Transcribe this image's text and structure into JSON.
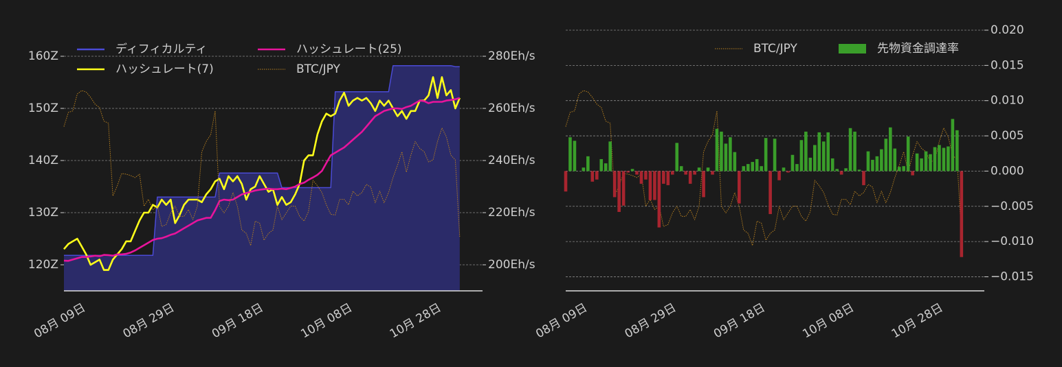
{
  "chart_data": [
    {
      "type": "line",
      "categories": [
        "08月 09日",
        null,
        null,
        null,
        null,
        null,
        null,
        null,
        null,
        null,
        null,
        null,
        null,
        null,
        null,
        null,
        null,
        null,
        null,
        null,
        "08月 29日",
        null,
        null,
        null,
        null,
        null,
        null,
        null,
        null,
        null,
        null,
        null,
        null,
        null,
        null,
        null,
        null,
        null,
        null,
        null,
        "09月 18日",
        null,
        null,
        null,
        null,
        null,
        null,
        null,
        null,
        null,
        null,
        null,
        null,
        null,
        null,
        null,
        null,
        null,
        null,
        null,
        "10月 08日",
        null,
        null,
        null,
        null,
        null,
        null,
        null,
        null,
        null,
        null,
        null,
        null,
        null,
        null,
        null,
        null,
        null,
        null,
        null,
        "10月 28日",
        null,
        null,
        null,
        null,
        null,
        null,
        null,
        null,
        null
      ],
      "ylim": [
        115,
        165
      ],
      "yticks": [
        {
          "value": 120,
          "label": "120Z"
        },
        {
          "value": 130,
          "label": "130Z"
        },
        {
          "value": 140,
          "label": "140Z"
        },
        {
          "value": 150,
          "label": "150Z"
        },
        {
          "value": 160,
          "label": "160Z"
        }
      ],
      "y2lim": [
        190,
        290
      ],
      "y2ticks": [
        {
          "value": 200,
          "label": "200Eh/s"
        },
        {
          "value": 220,
          "label": "220Eh/s"
        },
        {
          "value": 240,
          "label": "240Eh/s"
        },
        {
          "value": 260,
          "label": "260Eh/s"
        },
        {
          "value": 280,
          "label": "280Eh/s"
        }
      ],
      "grid": true,
      "legend": "upper left",
      "legend_columns": 2,
      "series": [
        {
          "name": "ディフィカルティ",
          "color": "#4b4bd6",
          "fill": "#2b2b69",
          "area": true,
          "values": [
            121.8,
            121.8,
            121.8,
            121.8,
            121.8,
            121.8,
            121.8,
            121.8,
            121.8,
            121.8,
            121.8,
            121.8,
            121.8,
            121.8,
            121.8,
            121.8,
            121.8,
            121.8,
            121.8,
            121.8,
            121.8,
            133,
            133,
            133,
            133,
            133,
            133,
            133,
            133,
            133,
            133,
            133,
            133,
            133,
            133,
            137.6,
            137.6,
            137.6,
            137.6,
            137.6,
            137.6,
            137.6,
            137.6,
            137.6,
            137.6,
            137.6,
            137.6,
            137.6,
            137.6,
            134.8,
            134.8,
            134.8,
            134.8,
            134.8,
            134.8,
            134.8,
            134.8,
            134.8,
            134.8,
            134.8,
            134.8,
            153.2,
            153.2,
            153.2,
            153.2,
            153.2,
            153.2,
            153.2,
            153.2,
            153.2,
            153.2,
            153.2,
            153.2,
            153.2,
            158.2,
            158.2,
            158.2,
            158.2,
            158.2,
            158.2,
            158.2,
            158.2,
            158.2,
            158.2,
            158.2,
            158.2,
            158.2,
            158.2,
            158,
            158
          ]
        },
        {
          "name": "ハッシュレート(7)",
          "color": "#ffff1a",
          "axis": "y2",
          "values": [
            206,
            208,
            209,
            210,
            207,
            204,
            200,
            201,
            202,
            198,
            198,
            202,
            204,
            206,
            209,
            209,
            213,
            217,
            220,
            220,
            223,
            222,
            225,
            223,
            225,
            216,
            219,
            223,
            225,
            225,
            225,
            224,
            227,
            229,
            232,
            233,
            229,
            234,
            232,
            234,
            231,
            225,
            229,
            230,
            234,
            231,
            228,
            229,
            223,
            226,
            223,
            224,
            227,
            231,
            240,
            242,
            242,
            250,
            255,
            258,
            257,
            258,
            263,
            266,
            261,
            263,
            264,
            263,
            264,
            262,
            259,
            263,
            261,
            263,
            260,
            257,
            259,
            256,
            259,
            259,
            263,
            263,
            265,
            272,
            264,
            272,
            265,
            267,
            260,
            264
          ]
        },
        {
          "name": "ハッシュレート(25)",
          "color": "#e8149c",
          "axis": "y2",
          "values": [
            201.6,
            201.5,
            202,
            202.5,
            203,
            203,
            203.2,
            203.5,
            203.3,
            203.8,
            203.7,
            203.5,
            204,
            204,
            204.2,
            204.7,
            205.5,
            206.5,
            207.5,
            208.5,
            209.5,
            210,
            210.2,
            210.8,
            211.5,
            212,
            213,
            214,
            215,
            216,
            217,
            217.5,
            218,
            218,
            221,
            224.5,
            225,
            224.8,
            225,
            226,
            227,
            227.5,
            228,
            228.5,
            228.8,
            229,
            229.2,
            229,
            229,
            229.2,
            229,
            229.5,
            230,
            231,
            231.5,
            232.6,
            233.5,
            234.5,
            236,
            239,
            242,
            243,
            244,
            245,
            246.5,
            248,
            249.5,
            251,
            253,
            255,
            257,
            258,
            259,
            259.5,
            260,
            260,
            259.8,
            260.5,
            261,
            262,
            263,
            262.8,
            262,
            262.5,
            262.5,
            262.5,
            263,
            263.2,
            263.5,
            264
          ]
        },
        {
          "name": "BTC/JPY",
          "color": "#b8801f",
          "axis": "own",
          "dash": "dotted",
          "values": [
            10.47,
            10.68,
            10.7,
            10.95,
            11.0,
            10.98,
            10.9,
            10.8,
            10.75,
            10.55,
            10.52,
            9.45,
            9.6,
            9.78,
            9.77,
            9.75,
            9.72,
            9.77,
            9.3,
            9.4,
            9.25,
            9.3,
            9.0,
            9.03,
            9.2,
            9.3,
            9.15,
            9.15,
            9.25,
            9.1,
            9.3,
            10.1,
            10.25,
            10.35,
            10.7,
            9.3,
            9.2,
            9.3,
            9.5,
            9.3,
            8.95,
            8.9,
            8.72,
            9.08,
            9.05,
            8.8,
            8.9,
            8.95,
            9.3,
            9.1,
            9.2,
            9.3,
            9.3,
            9.15,
            9.08,
            9.22,
            9.68,
            9.6,
            9.5,
            9.32,
            9.18,
            9.17,
            9.4,
            9.4,
            9.32,
            9.52,
            9.45,
            9.5,
            9.62,
            9.58,
            9.35,
            9.52,
            9.35,
            9.5,
            9.72,
            9.9,
            10.1,
            9.8,
            10.05,
            10.25,
            10.15,
            10.1,
            9.95,
            9.98,
            10.25,
            10.45,
            10.32,
            10.05,
            9.98,
            8.85
          ]
        }
      ]
    },
    {
      "type": "bar",
      "categories": [
        "08月 09日",
        null,
        null,
        null,
        null,
        null,
        null,
        null,
        null,
        null,
        null,
        null,
        null,
        null,
        null,
        null,
        null,
        null,
        null,
        null,
        "08月 29日",
        null,
        null,
        null,
        null,
        null,
        null,
        null,
        null,
        null,
        null,
        null,
        null,
        null,
        null,
        null,
        null,
        null,
        null,
        null,
        "09月 18日",
        null,
        null,
        null,
        null,
        null,
        null,
        null,
        null,
        null,
        null,
        null,
        null,
        null,
        null,
        null,
        null,
        null,
        null,
        null,
        "10月 08日",
        null,
        null,
        null,
        null,
        null,
        null,
        null,
        null,
        null,
        null,
        null,
        null,
        null,
        null,
        null,
        null,
        null,
        null,
        null,
        "10月 28日",
        null,
        null,
        null,
        null,
        null,
        null,
        null,
        null,
        null
      ],
      "ylim": [
        -0.017,
        0.02
      ],
      "yticks": [
        {
          "value": 0.02,
          "label": "0.020"
        },
        {
          "value": 0.015,
          "label": "0.015"
        },
        {
          "value": 0.01,
          "label": "0.010"
        },
        {
          "value": 0.005,
          "label": "0.005"
        },
        {
          "value": 0,
          "label": "0.000"
        },
        {
          "value": -0.005,
          "label": "−0.005"
        },
        {
          "value": -0.01,
          "label": "−0.010"
        },
        {
          "value": -0.015,
          "label": "−0.015"
        }
      ],
      "y_axis_side": "right",
      "grid": true,
      "legend": "upper right",
      "legend_columns": 2,
      "series": [
        {
          "name": "BTC/JPY",
          "type": "line",
          "color": "#b8801f",
          "axis": "own",
          "dash": "dotted",
          "values": [
            10.47,
            10.68,
            10.7,
            10.95,
            11.0,
            10.98,
            10.9,
            10.8,
            10.75,
            10.55,
            10.52,
            9.45,
            9.6,
            9.78,
            9.77,
            9.75,
            9.72,
            9.77,
            9.3,
            9.4,
            9.25,
            9.3,
            9.0,
            9.03,
            9.2,
            9.3,
            9.15,
            9.15,
            9.25,
            9.1,
            9.3,
            10.1,
            10.25,
            10.35,
            10.7,
            9.3,
            9.2,
            9.3,
            9.5,
            9.3,
            8.95,
            8.9,
            8.72,
            9.08,
            9.05,
            8.8,
            8.9,
            8.95,
            9.3,
            9.1,
            9.2,
            9.3,
            9.3,
            9.15,
            9.08,
            9.22,
            9.68,
            9.6,
            9.5,
            9.32,
            9.18,
            9.17,
            9.4,
            9.4,
            9.32,
            9.52,
            9.45,
            9.5,
            9.62,
            9.58,
            9.35,
            9.52,
            9.35,
            9.5,
            9.72,
            9.9,
            10.1,
            9.8,
            10.05,
            10.25,
            10.15,
            10.1,
            9.95,
            9.98,
            10.25,
            10.45,
            10.32,
            10.05,
            9.98,
            8.85
          ]
        },
        {
          "name": "先物資金調達率",
          "type": "bar",
          "color": "#3a9e2a",
          "negative_color": "#a8252f",
          "values": [
            -0.0029,
            0.0048,
            0.0043,
            0,
            0.0005,
            0.0021,
            -0.0015,
            -0.0012,
            0.0017,
            0.0011,
            0.0042,
            -0.0037,
            -0.0058,
            -0.0049,
            -0.0002,
            0.0003,
            -0.0005,
            -0.0018,
            -0.0012,
            -0.0041,
            -0.0041,
            -0.008,
            -0.0018,
            -0.002,
            -0.0005,
            0.004,
            0.0007,
            -0.0005,
            -0.0018,
            -0.0005,
            0.0005,
            -0.0037,
            0.0005,
            -0.0005,
            0.006,
            0.0056,
            0.0039,
            0.0048,
            0.0027,
            -0.0046,
            0.0007,
            0.001,
            0.0013,
            0.0017,
            0.0007,
            0.0047,
            -0.0061,
            0.0046,
            -0.0013,
            0.0005,
            -0.0002,
            0.0023,
            0.001,
            0.0044,
            0.0056,
            0.0019,
            0.0037,
            0.0055,
            0.0042,
            0.0055,
            0.0018,
            0.0003,
            -0.0005,
            0.0004,
            0.0061,
            0.0056,
            0.0002,
            -0.002,
            0.0028,
            0.0016,
            0.0021,
            0.0031,
            0.0046,
            0.0062,
            0.0032,
            0.0006,
            0.0007,
            0.0049,
            -0.0006,
            0.0025,
            0.0018,
            0.0028,
            0.0024,
            0.0034,
            0.0037,
            0.0033,
            0.0035,
            0.0074,
            0.0058,
            -0.0122
          ]
        }
      ]
    }
  ]
}
